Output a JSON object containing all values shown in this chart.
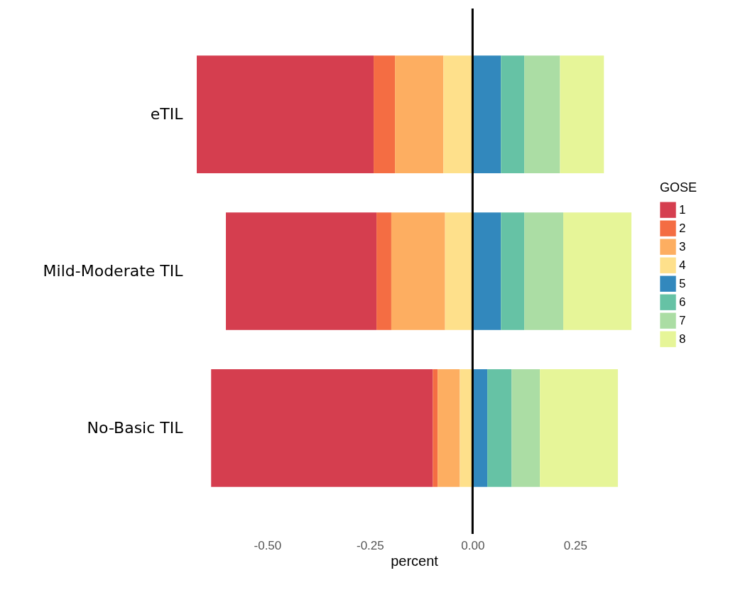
{
  "chart_data": {
    "type": "bar",
    "orientation": "horizontal",
    "stacked": true,
    "xlabel": "percent",
    "legend_title": "GOSE",
    "legend": "right",
    "grid": false,
    "categories": [
      "eTIL",
      "Mild-Moderate TIL",
      "No-Basic TIL"
    ],
    "xlim": [
      -0.672,
      0.387
    ],
    "xticks": [
      {
        "value": -0.5,
        "label": "-0.50"
      },
      {
        "value": -0.25,
        "label": "-0.25"
      },
      {
        "value": 0,
        "label": "0.00"
      },
      {
        "value": 0.25,
        "label": "0.25"
      }
    ],
    "ref_lines": [
      {
        "axis": "x",
        "value": 0,
        "color": "#000000"
      }
    ],
    "series": [
      {
        "name": "1",
        "color": "#d53e4f",
        "values": [
          -0.431,
          -0.367,
          -0.54
        ]
      },
      {
        "name": "2",
        "color": "#f46d43",
        "values": [
          -0.052,
          -0.036,
          -0.012
        ]
      },
      {
        "name": "3",
        "color": "#fdae61",
        "values": [
          -0.118,
          -0.131,
          -0.054
        ]
      },
      {
        "name": "4",
        "color": "#fee08b",
        "values": [
          -0.071,
          -0.067,
          -0.031
        ]
      },
      {
        "name": "5",
        "color": "#3288bd",
        "values": [
          0.069,
          0.069,
          0.036
        ]
      },
      {
        "name": "6",
        "color": "#66c2a5",
        "values": [
          0.057,
          0.057,
          0.059
        ]
      },
      {
        "name": "7",
        "color": "#abdda4",
        "values": [
          0.087,
          0.095,
          0.069
        ]
      },
      {
        "name": "8",
        "color": "#e6f598",
        "values": [
          0.107,
          0.166,
          0.19
        ]
      }
    ]
  }
}
